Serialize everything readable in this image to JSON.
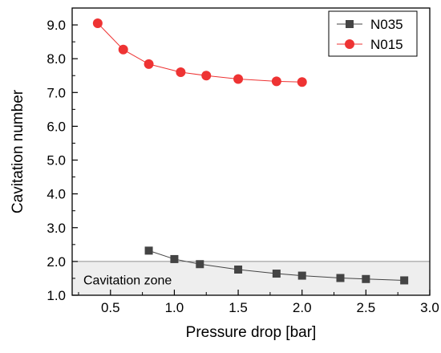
{
  "chart_data": {
    "type": "line",
    "title": "",
    "xlabel": "Pressure drop [bar]",
    "ylabel": "Cavitation number",
    "xlim": [
      0.2,
      3.0
    ],
    "ylim": [
      1.0,
      9.5
    ],
    "x_ticks": [
      "0.5",
      "1.0",
      "1.5",
      "2.0",
      "2.5",
      "3.0"
    ],
    "y_ticks": [
      "1.0",
      "2.0",
      "3.0",
      "4.0",
      "5.0",
      "6.0",
      "7.0",
      "8.0",
      "9.0"
    ],
    "grid": false,
    "legend_position": "top-right",
    "series": [
      {
        "name": "N035",
        "color": "#444444",
        "marker": "square",
        "x": [
          0.8,
          1.0,
          1.2,
          1.5,
          1.8,
          2.0,
          2.3,
          2.5,
          2.8
        ],
        "y": [
          2.32,
          2.07,
          1.92,
          1.76,
          1.64,
          1.58,
          1.51,
          1.48,
          1.44
        ]
      },
      {
        "name": "N015",
        "color": "#ee3333",
        "marker": "circle",
        "x": [
          0.4,
          0.6,
          0.8,
          1.05,
          1.25,
          1.5,
          1.8,
          2.0
        ],
        "y": [
          9.05,
          8.27,
          7.84,
          7.6,
          7.5,
          7.4,
          7.33,
          7.31
        ]
      }
    ],
    "annotations": [
      {
        "text": "Cavitation zone",
        "y_range": [
          1.0,
          2.0
        ],
        "fill": "#eeeeee"
      }
    ]
  }
}
